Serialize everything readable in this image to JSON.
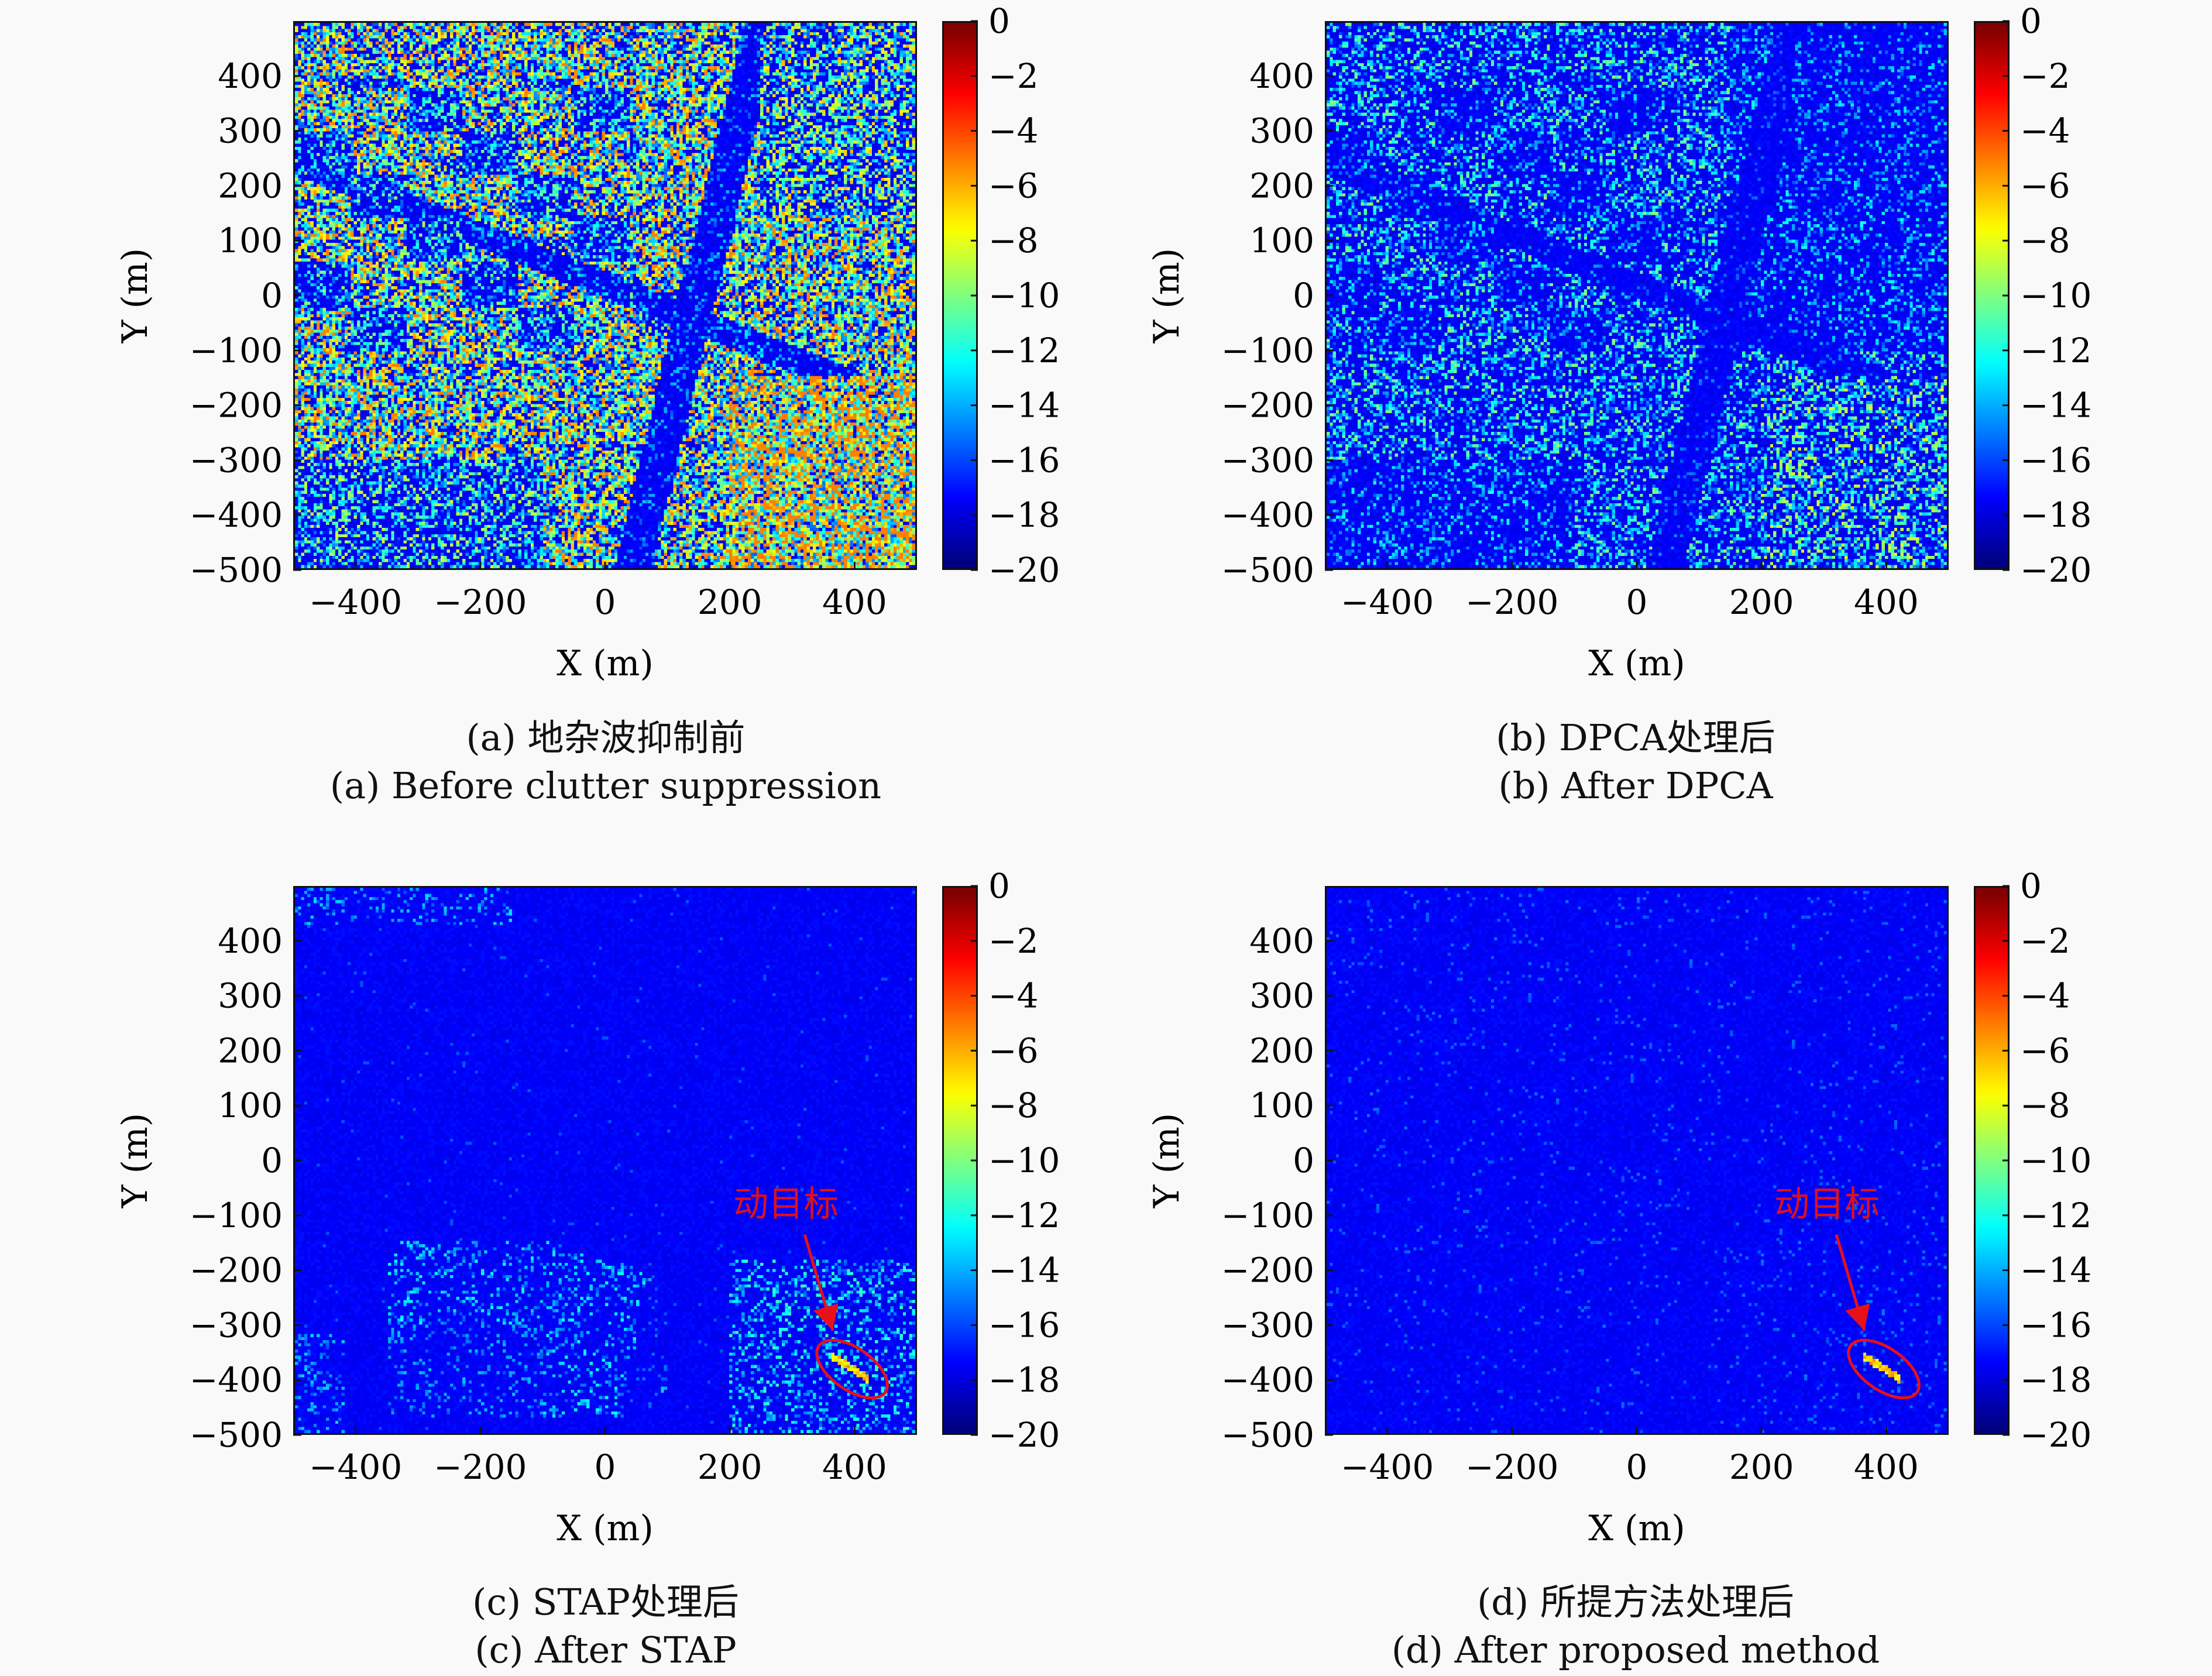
{
  "colors": {
    "annotation": "#e8101a",
    "background": "#f9f9f9"
  },
  "chart_data": [
    {
      "type": "heatmap",
      "id": "a",
      "xlabel": "X (m)",
      "ylabel": "Y (m)",
      "xlim": [
        -500,
        500
      ],
      "ylim": [
        -500,
        500
      ],
      "xticks": [
        -400,
        -200,
        0,
        200,
        400
      ],
      "yticks": [
        400,
        300,
        200,
        100,
        0,
        -100,
        -200,
        -300,
        -400,
        -500
      ],
      "colormap": "jet",
      "clim": [
        -20,
        0
      ],
      "colorbar_ticks": [
        0,
        -2,
        -4,
        -6,
        -8,
        -10,
        -12,
        -14,
        -16,
        -18,
        -20
      ],
      "clutter_level": 1.0,
      "caption_cn": "(a) 地杂波抑制前",
      "caption_en": "(a) Before clutter suppression"
    },
    {
      "type": "heatmap",
      "id": "b",
      "xlabel": "X (m)",
      "ylabel": "Y (m)",
      "xlim": [
        -500,
        500
      ],
      "ylim": [
        -500,
        500
      ],
      "xticks": [
        -400,
        -200,
        0,
        200,
        400
      ],
      "yticks": [
        400,
        300,
        200,
        100,
        0,
        -100,
        -200,
        -300,
        -400,
        -500
      ],
      "colormap": "jet",
      "clim": [
        -20,
        0
      ],
      "colorbar_ticks": [
        0,
        -2,
        -4,
        -6,
        -8,
        -10,
        -12,
        -14,
        -16,
        -18,
        -20
      ],
      "clutter_level": 0.6,
      "caption_cn": "(b) DPCA处理后",
      "caption_en": "(b) After DPCA"
    },
    {
      "type": "heatmap",
      "id": "c",
      "xlabel": "X (m)",
      "ylabel": "Y (m)",
      "xlim": [
        -500,
        500
      ],
      "ylim": [
        -500,
        500
      ],
      "xticks": [
        -400,
        -200,
        0,
        200,
        400
      ],
      "yticks": [
        400,
        300,
        200,
        100,
        0,
        -100,
        -200,
        -300,
        -400,
        -500
      ],
      "colormap": "jet",
      "clim": [
        -20,
        0
      ],
      "colorbar_ticks": [
        0,
        -2,
        -4,
        -6,
        -8,
        -10,
        -12,
        -14,
        -16,
        -18,
        -20
      ],
      "clutter_level": 0.3,
      "annotation": {
        "text": "动目标",
        "text_at": [
          290,
          -80
        ],
        "arrow_from": [
          320,
          -135
        ],
        "arrow_to": [
          365,
          -310
        ],
        "ellipse_center": [
          396,
          -380
        ],
        "ellipse_radii": [
          65,
          38
        ],
        "ellipse_angle": 35
      },
      "caption_cn": "(c) STAP处理后",
      "caption_en": "(c) After STAP"
    },
    {
      "type": "heatmap",
      "id": "d",
      "xlabel": "X (m)",
      "ylabel": "Y (m)",
      "xlim": [
        -500,
        500
      ],
      "ylim": [
        -500,
        500
      ],
      "xticks": [
        -400,
        -200,
        0,
        200,
        400
      ],
      "yticks": [
        400,
        300,
        200,
        100,
        0,
        -100,
        -200,
        -300,
        -400,
        -500
      ],
      "colormap": "jet",
      "clim": [
        -20,
        0
      ],
      "colorbar_ticks": [
        0,
        -2,
        -4,
        -6,
        -8,
        -10,
        -12,
        -14,
        -16,
        -18,
        -20
      ],
      "clutter_level": 0.12,
      "annotation": {
        "text": "动目标",
        "text_at": [
          305,
          -80
        ],
        "arrow_from": [
          320,
          -135
        ],
        "arrow_to": [
          365,
          -310
        ],
        "ellipse_center": [
          396,
          -380
        ],
        "ellipse_radii": [
          65,
          38
        ],
        "ellipse_angle": 35
      },
      "caption_cn": "(d) 所提方法处理后",
      "caption_en": "(d) After proposed method"
    }
  ]
}
